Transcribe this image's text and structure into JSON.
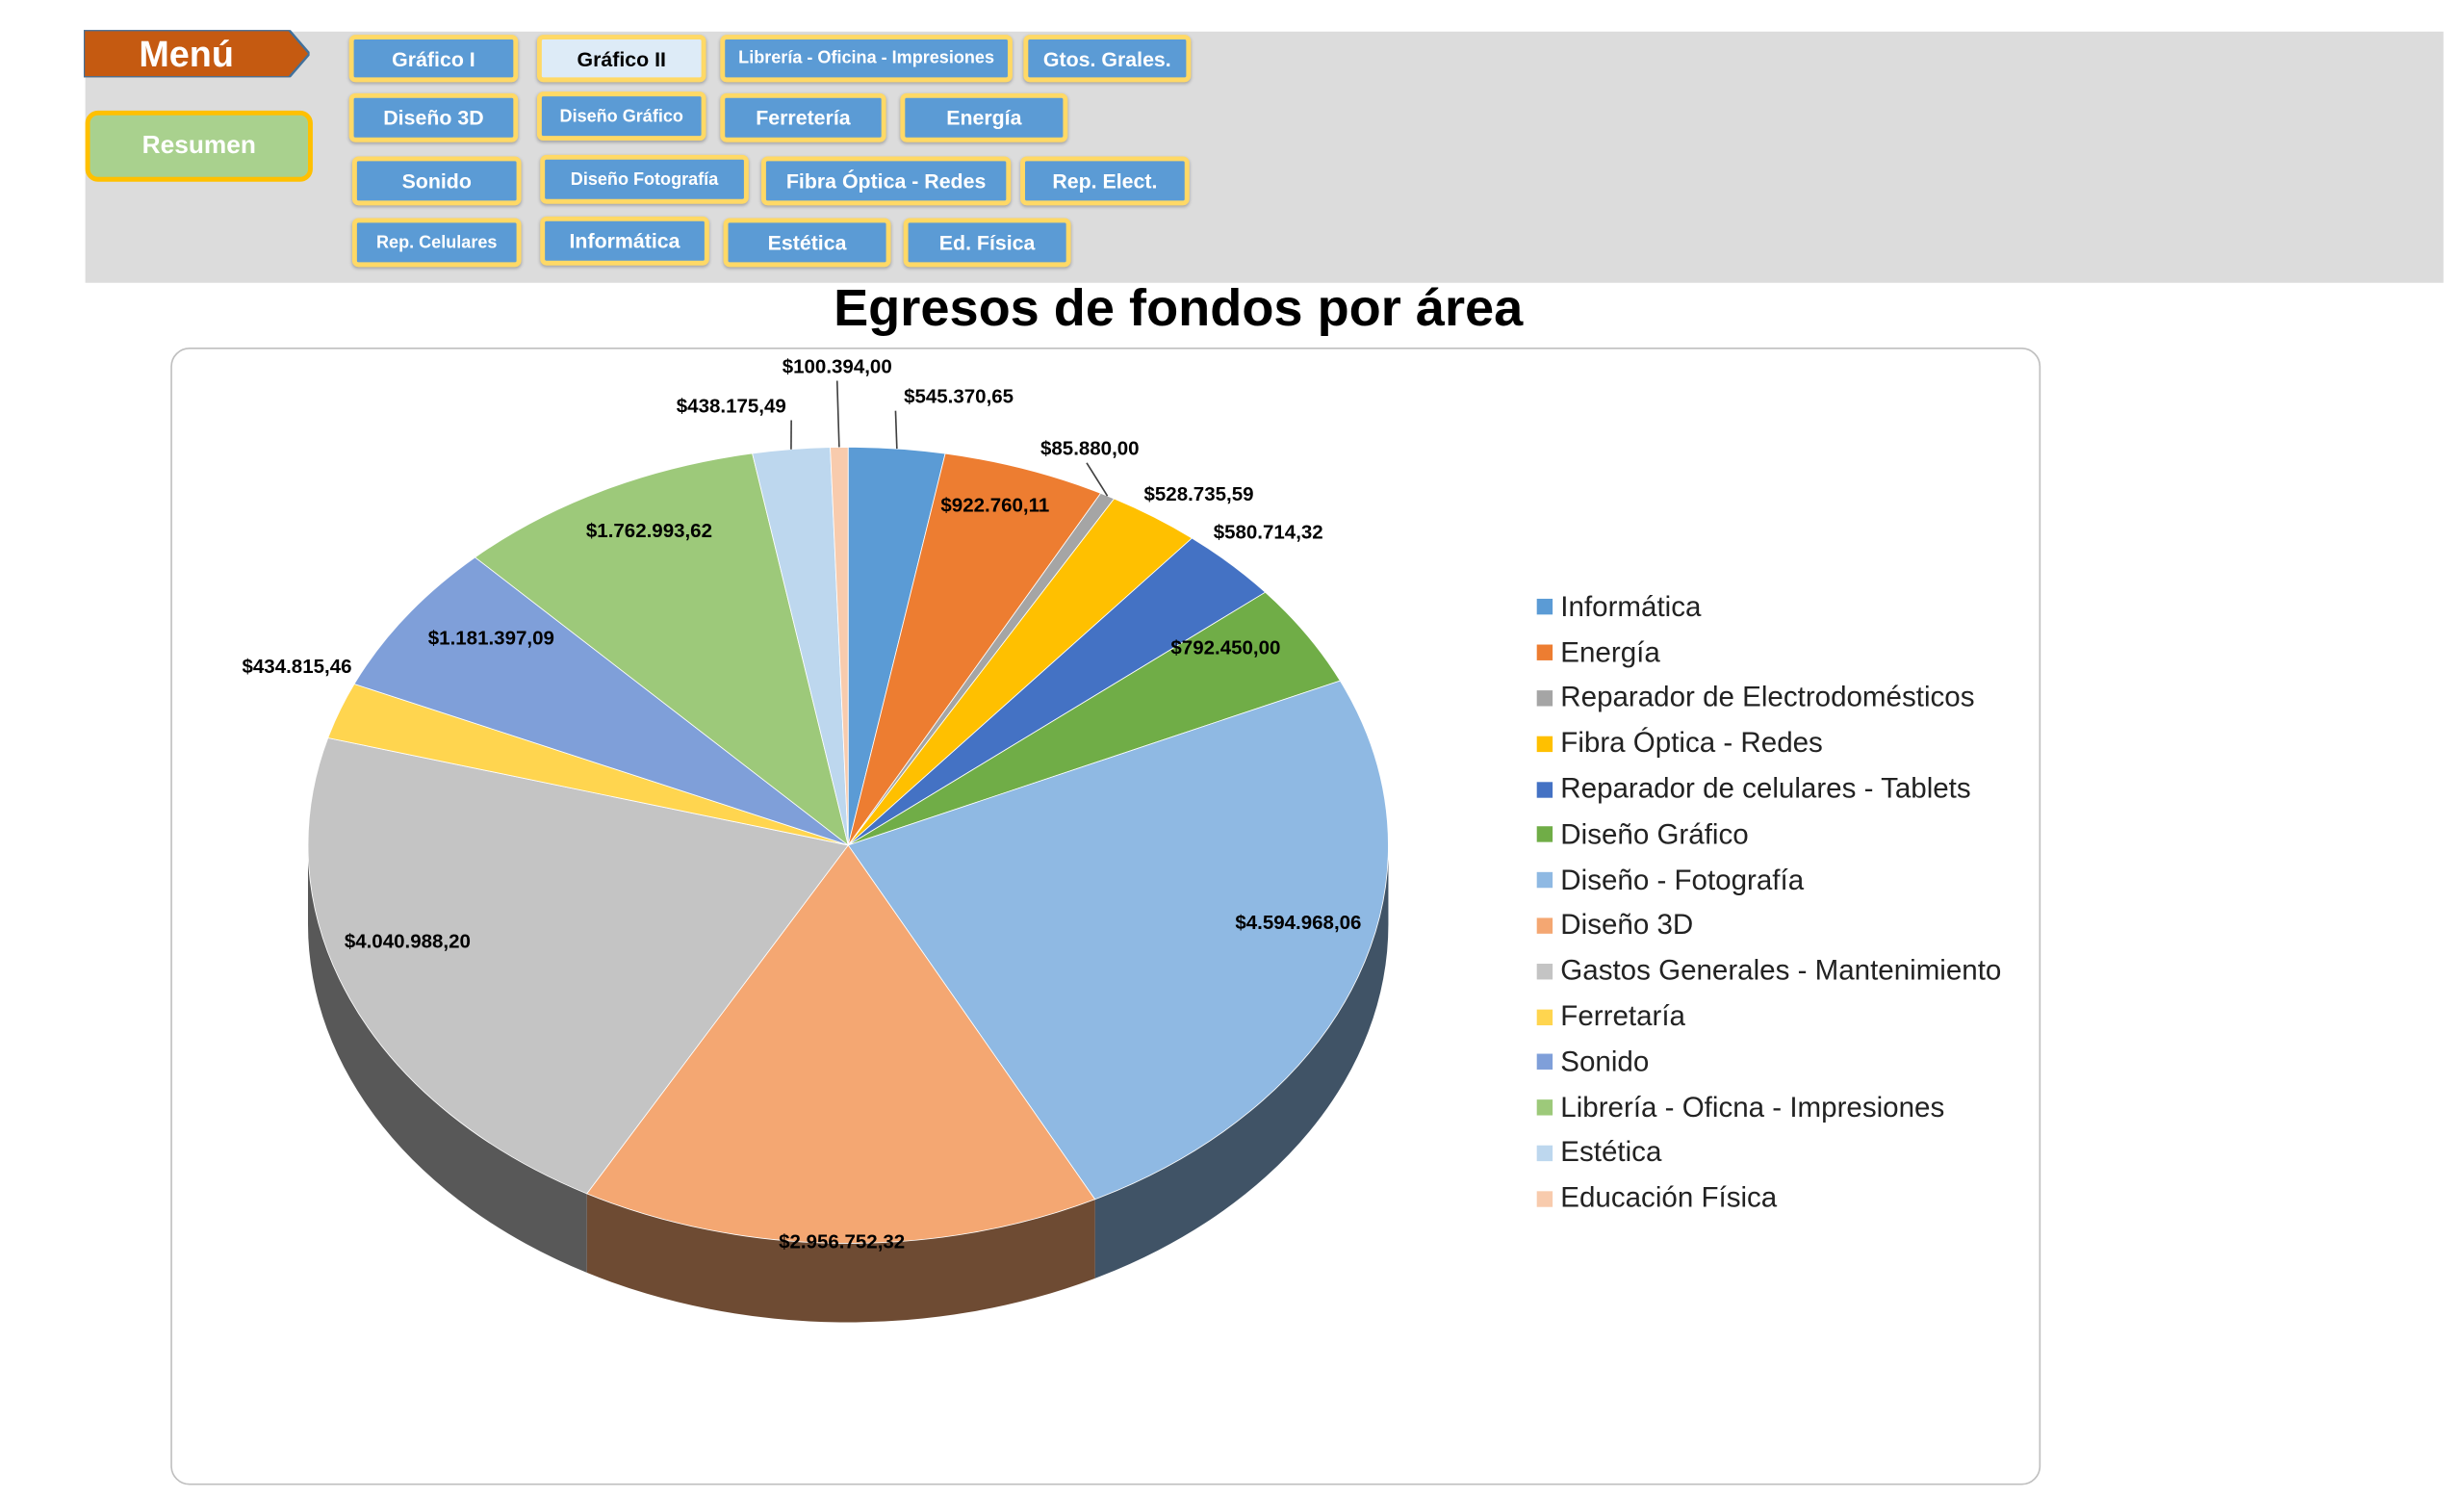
{
  "menu": {
    "menu_label": "Menú",
    "resumen_label": "Resumen",
    "buttons": [
      {
        "label": "Gráfico I"
      },
      {
        "label": "Gráfico II"
      },
      {
        "label": "Librería - Oficina - Impresiones"
      },
      {
        "label": "Gtos. Grales."
      },
      {
        "label": "Diseño 3D"
      },
      {
        "label": "Diseño Gráfico"
      },
      {
        "label": "Ferretería"
      },
      {
        "label": "Energía"
      },
      {
        "label": "Sonido"
      },
      {
        "label": "Diseño Fotografía"
      },
      {
        "label": "Fibra Óptica - Redes"
      },
      {
        "label": "Rep. Elect."
      },
      {
        "label": "Rep. Celulares"
      },
      {
        "label": "Informática"
      },
      {
        "label": "Estética"
      },
      {
        "label": "Ed. Física"
      }
    ]
  },
  "chart_data": {
    "type": "pie",
    "title": "Egresos de fondos por área",
    "legend_position": "right",
    "categories": [
      "Informática",
      "Energía",
      "Reparador de Electrodomésticos",
      "Fibra Óptica - Redes",
      "Reparador de celulares - Tablets",
      "Diseño Gráfico",
      "Diseño - Fotografía",
      "Diseño 3D",
      "Gastos Generales - Mantenimiento",
      "Ferretaría",
      "Sonido",
      "Librería - Oficna - Impresiones",
      "Estética",
      "Educación Física"
    ],
    "values": [
      545370.65,
      922760.11,
      85880.0,
      528735.59,
      580714.32,
      792450.0,
      4594968.06,
      2956752.32,
      4040988.2,
      434815.46,
      1181397.09,
      1762993.62,
      438175.49,
      100394.0
    ],
    "labels": [
      "$545.370,65",
      "$922.760,11",
      "$85.880,00",
      "$528.735,59",
      "$580.714,32",
      "$792.450,00",
      "$4.594.968,06",
      "$2.956.752,32",
      "$4.040.988,20",
      "$434.815,46",
      "$1.181.397,09",
      "$1.762.993,62",
      "$438.175,49",
      "$100.394,00"
    ],
    "colors": [
      "#5b9bd5",
      "#ed7d31",
      "#a5a5a5",
      "#ffc000",
      "#4472c4",
      "#70ad47",
      "#8fb9e3",
      "#f4a772",
      "#c4c4c4",
      "#ffd54f",
      "#7f9fd9",
      "#9dc97a",
      "#bdd7ee",
      "#f8cbad"
    ]
  }
}
